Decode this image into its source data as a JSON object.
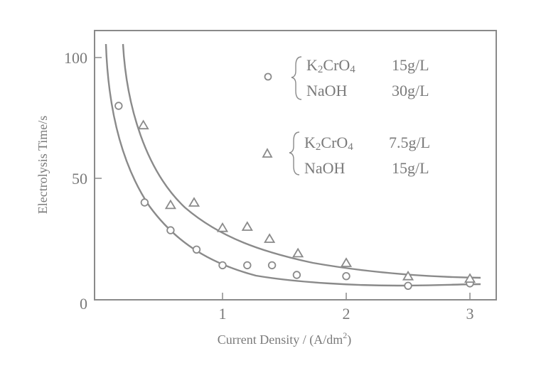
{
  "chart_data": {
    "type": "scatter",
    "title": "",
    "xlabel": "Current Density / (A/dm²)",
    "xlabel_base": "Current Density / (A/dm",
    "xlabel_sup": "2",
    "xlabel_tail": ")",
    "ylabel": "Electrolysis Time/s",
    "xlim": [
      0,
      3.2
    ],
    "ylim": [
      0,
      108
    ],
    "xticks": [
      1,
      2,
      3
    ],
    "yticks": [
      0,
      50,
      100
    ],
    "grid": false,
    "legend_position": "upper right (inside)",
    "series": [
      {
        "name": "K2CrO4 15g/L, NaOH 30g/L",
        "marker": "circle",
        "x": [
          0.16,
          0.37,
          0.58,
          0.79,
          1.0,
          1.2,
          1.4,
          1.6,
          2.0,
          2.5,
          3.0
        ],
        "y": [
          80,
          40,
          28.5,
          20.5,
          14,
          14,
          14,
          10,
          9.5,
          5.5,
          6.5
        ],
        "fit_curve": true
      },
      {
        "name": "K2CrO4 7.5g/L, NaOH 15g/L",
        "marker": "triangle",
        "x": [
          0.36,
          0.58,
          0.77,
          1.0,
          1.2,
          1.38,
          1.61,
          2.0,
          2.5,
          3.0
        ],
        "y": [
          72,
          39,
          40,
          29.5,
          30,
          25,
          19,
          15,
          9.5,
          8.5
        ],
        "fit_curve": true
      }
    ],
    "legend": [
      {
        "marker": "circle",
        "lines": [
          {
            "compound": "K2CrO4",
            "conc": "15g/L"
          },
          {
            "compound": "NaOH",
            "conc": "30g/L"
          }
        ]
      },
      {
        "marker": "triangle",
        "lines": [
          {
            "compound": "K2CrO4",
            "conc": "7.5g/L"
          },
          {
            "compound": "NaOH",
            "conc": "15g/L"
          }
        ]
      }
    ]
  },
  "style": {
    "ink": "#8a8a8a",
    "text": "#7a7a7a",
    "background": "#ffffff"
  }
}
